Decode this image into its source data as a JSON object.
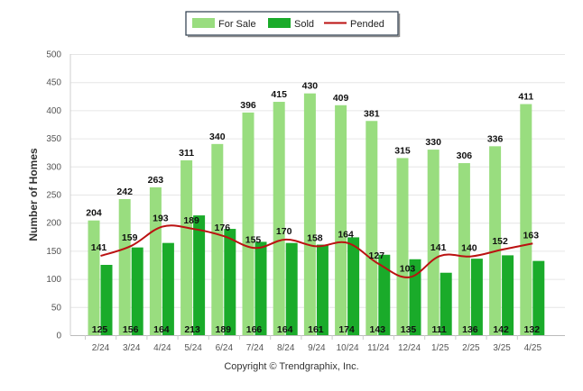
{
  "chart_data": {
    "type": "bar",
    "categories": [
      "2/24",
      "3/24",
      "4/24",
      "5/24",
      "6/24",
      "7/24",
      "8/24",
      "9/24",
      "10/24",
      "11/24",
      "12/24",
      "1/25",
      "2/25",
      "3/25",
      "4/25"
    ],
    "series": [
      {
        "name": "For Sale",
        "type": "bar",
        "color": "#99dd7f",
        "values": [
          204,
          242,
          263,
          311,
          340,
          396,
          415,
          430,
          409,
          381,
          315,
          330,
          306,
          336,
          411
        ]
      },
      {
        "name": "Sold",
        "type": "bar",
        "color": "#1aab2a",
        "values": [
          125,
          156,
          164,
          213,
          189,
          166,
          164,
          161,
          174,
          143,
          135,
          111,
          136,
          142,
          132
        ]
      },
      {
        "name": "Pended",
        "type": "line",
        "color": "#bb1111",
        "values": [
          141,
          159,
          193,
          189,
          176,
          155,
          170,
          158,
          164,
          127,
          103,
          141,
          140,
          152,
          163
        ]
      }
    ],
    "ylabel": "Number of Homes",
    "xlabel": "",
    "ylim": [
      0,
      500
    ],
    "yticks": [
      0,
      50,
      100,
      150,
      200,
      250,
      300,
      350,
      400,
      450,
      500
    ],
    "grid": true,
    "legend_position": "top-center"
  },
  "footer": {
    "copyright": "Copyright © Trendgraphix, Inc."
  }
}
